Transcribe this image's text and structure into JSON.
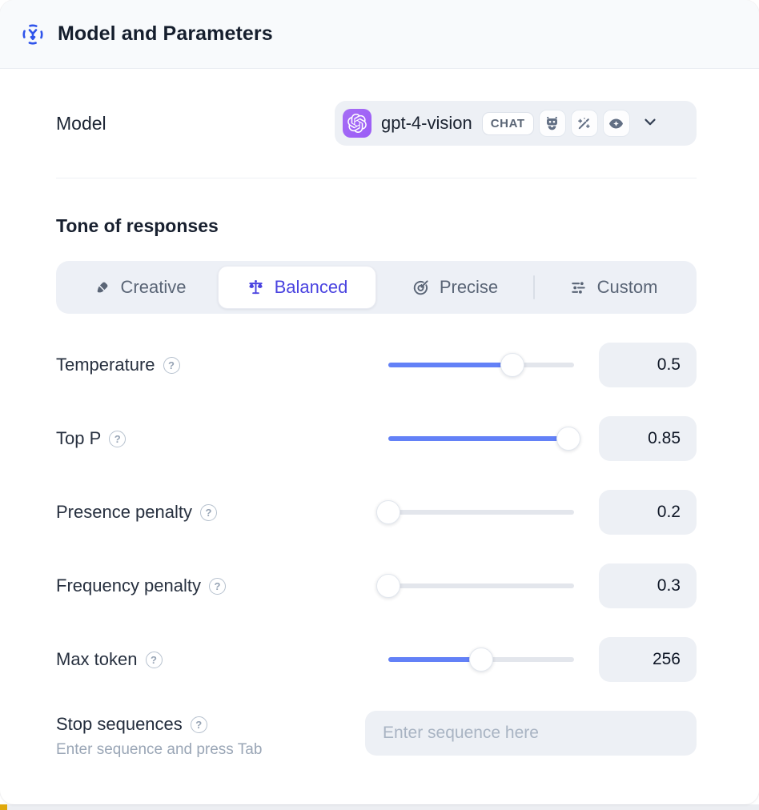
{
  "header": {
    "title": "Model and Parameters"
  },
  "model_row": {
    "label": "Model",
    "dropdown": {
      "provider": "openai",
      "model_name": "gpt-4-vision",
      "mode_badge": "CHAT",
      "capability_icons": [
        "robot-icon",
        "magic-wand-icon",
        "vision-eye-icon"
      ]
    }
  },
  "tone": {
    "heading": "Tone of responses",
    "options": [
      {
        "label": "Creative",
        "icon": "paintbrush-icon",
        "selected": false
      },
      {
        "label": "Balanced",
        "icon": "balance-scale-icon",
        "selected": true
      },
      {
        "label": "Precise",
        "icon": "target-arrow-icon",
        "selected": false
      },
      {
        "label": "Custom",
        "icon": "adjustments-icon",
        "selected": false
      }
    ]
  },
  "parameters": [
    {
      "label": "Temperature",
      "value": "0.5",
      "slider_fill_percent": 67
    },
    {
      "label": "Top P",
      "value": "0.85",
      "slider_fill_percent": 97
    },
    {
      "label": "Presence penalty",
      "value": "0.2",
      "slider_fill_percent": 0
    },
    {
      "label": "Frequency penalty",
      "value": "0.3",
      "slider_fill_percent": 0
    },
    {
      "label": "Max token",
      "value": "256",
      "slider_fill_percent": 50
    }
  ],
  "stop_sequences": {
    "label": "Stop sequences",
    "hint": "Enter sequence and press Tab",
    "placeholder": "Enter sequence here"
  },
  "icons": {
    "help_glyph": "?"
  },
  "colors": {
    "accent_blue": "#6381f7",
    "selected_indigo": "#4a43e0",
    "header_icon_blue": "#2f54eb",
    "provider_badge_purple": "#9b5cf6",
    "panel_gray": "#edf0f5",
    "accent_yellow": "#e0a90c"
  }
}
